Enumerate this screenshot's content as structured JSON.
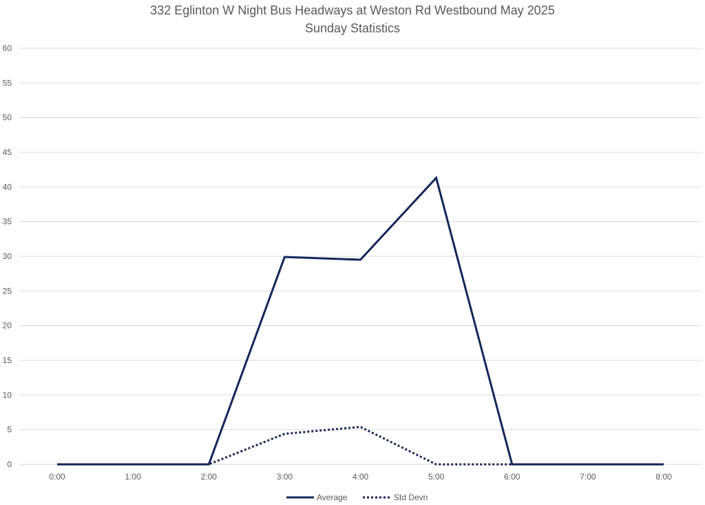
{
  "chart_data": {
    "type": "line",
    "title": "332 Eglinton W Night Bus Headways at Weston Rd Westbound May 2025",
    "subtitle": "Sunday Statistics",
    "xlabel": "",
    "ylabel": "",
    "categories": [
      "0:00",
      "1:00",
      "2:00",
      "3:00",
      "4:00",
      "5:00",
      "6:00",
      "7:00",
      "8:00"
    ],
    "y_ticks": [
      "0",
      "5",
      "10",
      "15",
      "20",
      "25",
      "30",
      "35",
      "40",
      "45",
      "50",
      "55",
      "60"
    ],
    "ylim": [
      0,
      60
    ],
    "grid": true,
    "legend_position": "bottom",
    "series": [
      {
        "name": "Average",
        "values": [
          0,
          0,
          0,
          29.9,
          29.5,
          41.3,
          0,
          0,
          0
        ],
        "color": "#12265a",
        "style": "solid"
      },
      {
        "name": "Std Devn",
        "values": [
          0,
          0,
          0,
          4.4,
          5.4,
          0,
          0,
          0,
          0
        ],
        "color": "#12265a",
        "style": "dotted"
      }
    ]
  }
}
